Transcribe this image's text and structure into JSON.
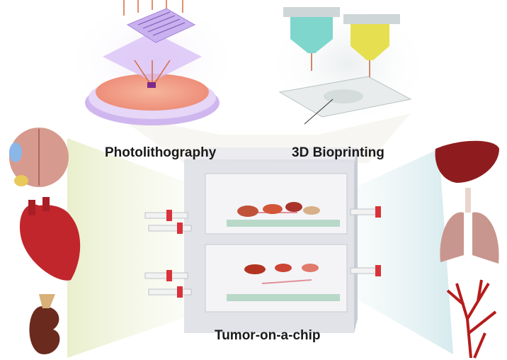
{
  "labels": {
    "photolithography": "Photolithography",
    "bioprinting": "3D Bioprinting",
    "tumor_chip": "Tumor-on-a-chip"
  },
  "organs": {
    "left": [
      "brain",
      "heart",
      "kidney"
    ],
    "right": [
      "liver",
      "lungs",
      "blood-vessels"
    ]
  },
  "colors": {
    "uv_light": "#d66a3a",
    "wafer": "#f2a58c",
    "lithography_glow": "#c9a3f0",
    "nozzle_cyan": "#6fd0c8",
    "nozzle_yellow": "#e6e050",
    "connector_red": "#d8333a",
    "beam_left": "#eef3d6",
    "beam_right": "#e3f0f2"
  }
}
